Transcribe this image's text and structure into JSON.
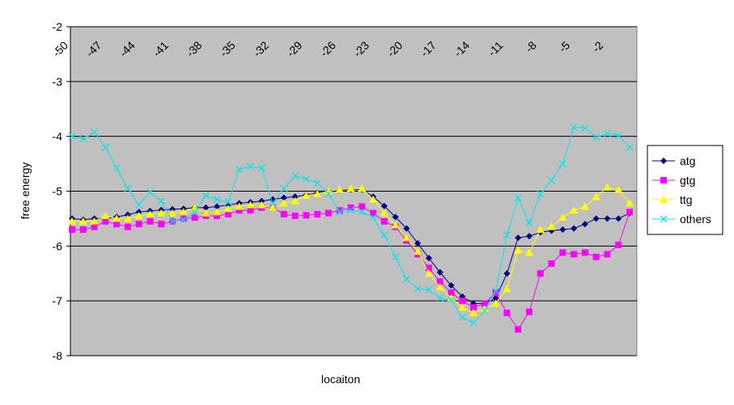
{
  "chart_data": {
    "type": "line",
    "xlabel": "locaiton",
    "ylabel": "free energy",
    "categories": [
      "-50",
      null,
      null,
      "-47",
      null,
      null,
      "-44",
      null,
      null,
      "-41",
      null,
      null,
      "-38",
      null,
      null,
      "-35",
      null,
      null,
      "-32",
      null,
      null,
      "-29",
      null,
      null,
      "-26",
      null,
      null,
      "-23",
      null,
      null,
      "-20",
      null,
      null,
      "-17",
      null,
      null,
      "-14",
      null,
      null,
      "-11",
      null,
      null,
      "-8",
      null,
      null,
      "-5",
      null,
      null,
      "-2",
      null,
      null
    ],
    "series": [
      {
        "name": "atg",
        "color": "#000080",
        "marker": "diamond",
        "values": [
          -5.5,
          -5.52,
          -5.5,
          -5.5,
          -5.47,
          -5.43,
          -5.38,
          -5.36,
          -5.34,
          -5.33,
          -5.32,
          -5.3,
          -5.3,
          -5.28,
          -5.25,
          -5.22,
          -5.2,
          -5.18,
          -5.15,
          -5.12,
          -5.1,
          -5.07,
          -5.03,
          -5.0,
          -4.98,
          -4.97,
          -4.97,
          -5.1,
          -5.27,
          -5.47,
          -5.68,
          -5.95,
          -6.22,
          -6.48,
          -6.72,
          -6.92,
          -7.05,
          -7.05,
          -6.95,
          -6.5,
          -5.85,
          -5.82,
          -5.75,
          -5.72,
          -5.7,
          -5.68,
          -5.6,
          -5.5,
          -5.5,
          -5.5,
          -5.4
        ]
      },
      {
        "name": "gtg",
        "color": "#ff00ff",
        "marker": "square",
        "values": [
          -5.7,
          -5.7,
          -5.65,
          -5.55,
          -5.6,
          -5.65,
          -5.6,
          -5.55,
          -5.6,
          -5.55,
          -5.5,
          -5.48,
          -5.45,
          -5.45,
          -5.42,
          -5.35,
          -5.35,
          -5.3,
          -5.3,
          -5.42,
          -5.45,
          -5.44,
          -5.42,
          -5.4,
          -5.35,
          -5.3,
          -5.28,
          -5.4,
          -5.55,
          -5.65,
          -5.9,
          -6.15,
          -6.4,
          -6.65,
          -6.85,
          -7.0,
          -7.12,
          -7.05,
          -6.85,
          -7.22,
          -7.52,
          -7.2,
          -6.5,
          -6.32,
          -6.12,
          -6.15,
          -6.12,
          -6.2,
          -6.15,
          -5.98,
          -5.38
        ]
      },
      {
        "name": "ttg",
        "color": "#ffff00",
        "marker": "triangle",
        "values": [
          -5.55,
          -5.55,
          -5.55,
          -5.45,
          -5.5,
          -5.5,
          -5.45,
          -5.42,
          -5.4,
          -5.4,
          -5.38,
          -5.3,
          -5.4,
          -5.38,
          -5.32,
          -5.28,
          -5.25,
          -5.25,
          -5.3,
          -5.22,
          -5.18,
          -5.08,
          -5.05,
          -5.0,
          -4.97,
          -4.95,
          -4.95,
          -5.15,
          -5.4,
          -5.62,
          -5.85,
          -6.1,
          -6.5,
          -6.75,
          -6.95,
          -7.12,
          -7.22,
          -7.15,
          -7.05,
          -6.78,
          -6.08,
          -6.12,
          -5.7,
          -5.65,
          -5.48,
          -5.35,
          -5.28,
          -5.1,
          -4.93,
          -4.97,
          -5.22
        ]
      },
      {
        "name": "others",
        "color": "#00e5ee",
        "marker": "x",
        "values": [
          -4.0,
          -4.05,
          -3.92,
          -4.2,
          -4.58,
          -4.95,
          -5.25,
          -5.02,
          -5.18,
          -5.55,
          -5.52,
          -5.38,
          -5.08,
          -5.15,
          -5.2,
          -4.6,
          -4.55,
          -4.58,
          -5.22,
          -4.95,
          -4.72,
          -4.78,
          -4.85,
          -5.05,
          -5.38,
          -5.35,
          -5.38,
          -5.48,
          -5.8,
          -6.2,
          -6.6,
          -6.78,
          -6.8,
          -6.95,
          -6.98,
          -7.3,
          -7.4,
          -7.18,
          -6.82,
          -5.8,
          -5.12,
          -5.58,
          -5.05,
          -4.8,
          -4.5,
          -3.83,
          -3.85,
          -4.02,
          -3.95,
          -3.98,
          -4.2
        ]
      }
    ],
    "ylim": [
      -8,
      -2
    ],
    "yticks": [
      -8,
      -7,
      -6,
      -5,
      -4,
      -3,
      -2
    ],
    "grid": true,
    "legend": "right",
    "background": "#c0c0c0"
  }
}
